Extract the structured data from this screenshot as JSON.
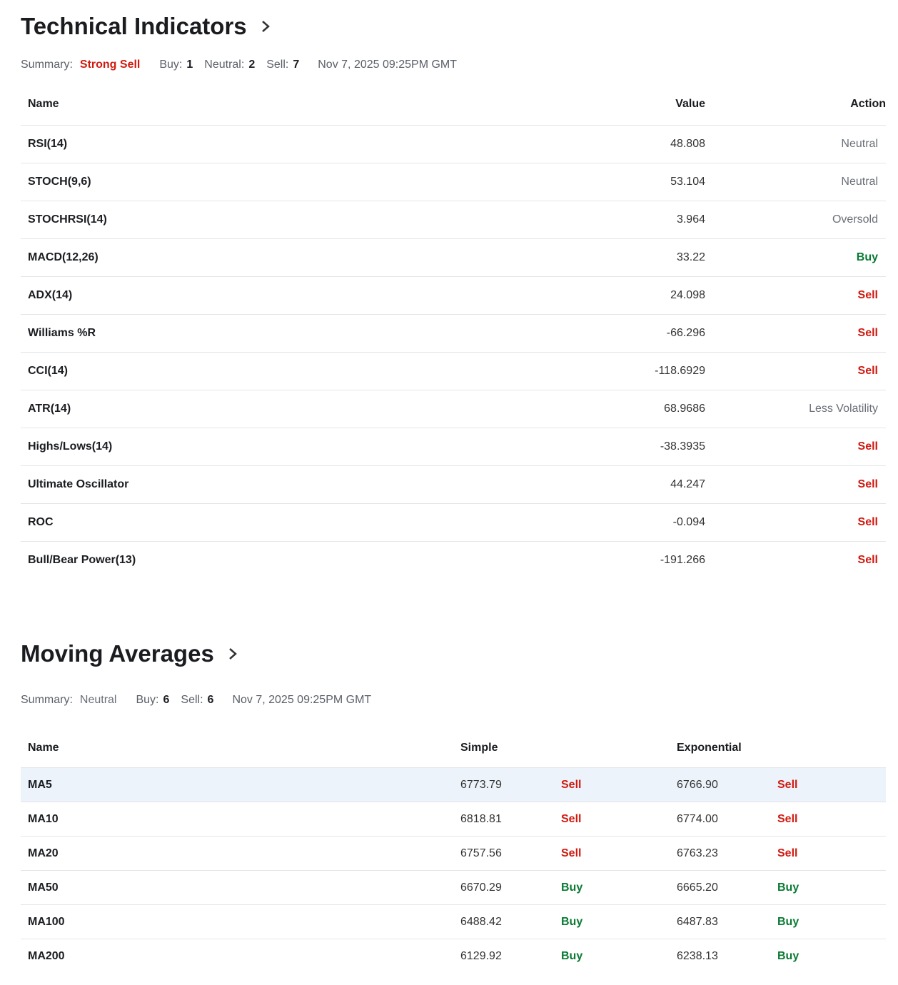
{
  "technical": {
    "title": "Technical Indicators",
    "summary": {
      "label": "Summary:",
      "value": "Strong Sell",
      "value_color": "#d0190f",
      "buy_label": "Buy:",
      "buy": "1",
      "neutral_label": "Neutral:",
      "neutral": "2",
      "sell_label": "Sell:",
      "sell": "7",
      "date": "Nov 7, 2025 09:25PM GMT"
    },
    "table": {
      "headers": [
        "Name",
        "Value",
        "Action"
      ],
      "rows": [
        {
          "name": "RSI(14)",
          "value": "48.808",
          "action": "Neutral",
          "action_color": "#6b6f78"
        },
        {
          "name": "STOCH(9,6)",
          "value": "53.104",
          "action": "Neutral",
          "action_color": "#6b6f78"
        },
        {
          "name": "STOCHRSI(14)",
          "value": "3.964",
          "action": "Oversold",
          "action_color": "#6b6f78"
        },
        {
          "name": "MACD(12,26)",
          "value": "33.22",
          "action": "Buy",
          "action_color": "#0a7a33"
        },
        {
          "name": "ADX(14)",
          "value": "24.098",
          "action": "Sell",
          "action_color": "#d0190f"
        },
        {
          "name": "Williams %R",
          "value": "-66.296",
          "action": "Sell",
          "action_color": "#d0190f"
        },
        {
          "name": "CCI(14)",
          "value": "-118.6929",
          "action": "Sell",
          "action_color": "#d0190f"
        },
        {
          "name": "ATR(14)",
          "value": "68.9686",
          "action": "Less Volatility",
          "action_color": "#6b6f78"
        },
        {
          "name": "Highs/Lows(14)",
          "value": "-38.3935",
          "action": "Sell",
          "action_color": "#d0190f"
        },
        {
          "name": "Ultimate Oscillator",
          "value": "44.247",
          "action": "Sell",
          "action_color": "#d0190f"
        },
        {
          "name": "ROC",
          "value": "-0.094",
          "action": "Sell",
          "action_color": "#d0190f"
        },
        {
          "name": "Bull/Bear Power(13)",
          "value": "-191.266",
          "action": "Sell",
          "action_color": "#d0190f"
        }
      ]
    }
  },
  "moving": {
    "title": "Moving Averages",
    "summary": {
      "label": "Summary:",
      "value": "Neutral",
      "value_color": "#6b6f78",
      "buy_label": "Buy:",
      "buy": "6",
      "sell_label": "Sell:",
      "sell": "6",
      "date": "Nov 7, 2025 09:25PM GMT"
    },
    "table": {
      "headers": [
        "Name",
        "Simple",
        "Exponential"
      ],
      "rows": [
        {
          "name": "MA5",
          "simple": "6773.79",
          "simple_action": "Sell",
          "simple_color": "#d0190f",
          "exponential": "6766.90",
          "exponential_action": "Sell",
          "exponential_color": "#d0190f"
        },
        {
          "name": "MA10",
          "simple": "6818.81",
          "simple_action": "Sell",
          "simple_color": "#d0190f",
          "exponential": "6774.00",
          "exponential_action": "Sell",
          "exponential_color": "#d0190f"
        },
        {
          "name": "MA20",
          "simple": "6757.56",
          "simple_action": "Sell",
          "simple_color": "#d0190f",
          "exponential": "6763.23",
          "exponential_action": "Sell",
          "exponential_color": "#d0190f"
        },
        {
          "name": "MA50",
          "simple": "6670.29",
          "simple_action": "Buy",
          "simple_color": "#0a7a33",
          "exponential": "6665.20",
          "exponential_action": "Buy",
          "exponential_color": "#0a7a33"
        },
        {
          "name": "MA100",
          "simple": "6488.42",
          "simple_action": "Buy",
          "simple_color": "#0a7a33",
          "exponential": "6487.83",
          "exponential_action": "Buy",
          "exponential_color": "#0a7a33"
        },
        {
          "name": "MA200",
          "simple": "6129.92",
          "simple_action": "Buy",
          "simple_color": "#0a7a33",
          "exponential": "6238.13",
          "exponential_action": "Buy",
          "exponential_color": "#0a7a33"
        }
      ]
    }
  }
}
